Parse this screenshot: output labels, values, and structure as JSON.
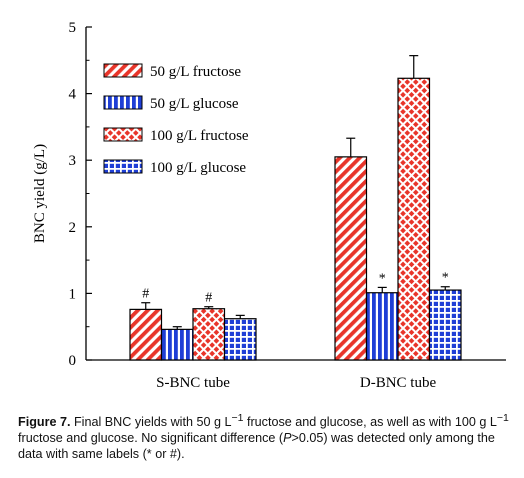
{
  "chart_data": {
    "type": "bar",
    "ylabel": "BNC yield (g/L)",
    "xlabel": "",
    "ylim": [
      0,
      5
    ],
    "yticks": [
      "0",
      "1",
      "2",
      "3",
      "4",
      "5"
    ],
    "categories": [
      "S-BNC tube",
      "D-BNC tube"
    ],
    "series": [
      {
        "name": "50 g/L fructose",
        "color": "#e8352a",
        "pattern": "diagonal-stripes",
        "values": [
          0.76,
          3.05
        ],
        "errors": [
          0.1,
          0.28
        ],
        "marks": [
          "#",
          ""
        ]
      },
      {
        "name": "50 g/L glucose",
        "color": "#1f3fd6",
        "pattern": "vertical-stripes",
        "values": [
          0.46,
          1.01
        ],
        "errors": [
          0.04,
          0.08
        ],
        "marks": [
          "",
          "*"
        ]
      },
      {
        "name": "100 g/L fructose",
        "color": "#e8352a",
        "pattern": "crosshatch",
        "values": [
          0.77,
          4.23
        ],
        "errors": [
          0.03,
          0.34
        ],
        "marks": [
          "#",
          ""
        ]
      },
      {
        "name": "100 g/L glucose",
        "color": "#1f3fd6",
        "pattern": "grid",
        "values": [
          0.62,
          1.05
        ],
        "errors": [
          0.05,
          0.05
        ],
        "marks": [
          "",
          "*"
        ]
      }
    ],
    "legend_position": "top-left",
    "grid": false
  },
  "caption": {
    "label": "Figure 7.",
    "text_1": " Final BNC yields with 50 g L",
    "sup_1": "−1",
    "text_2": " fructose and glucose, as well as with 100 g L",
    "sup_2": "−1",
    "text_3": " fructose and glucose. No significant difference (",
    "italic_p": "P",
    "text_4": ">0.05) was detected only among the data with same labels (* or #)."
  }
}
